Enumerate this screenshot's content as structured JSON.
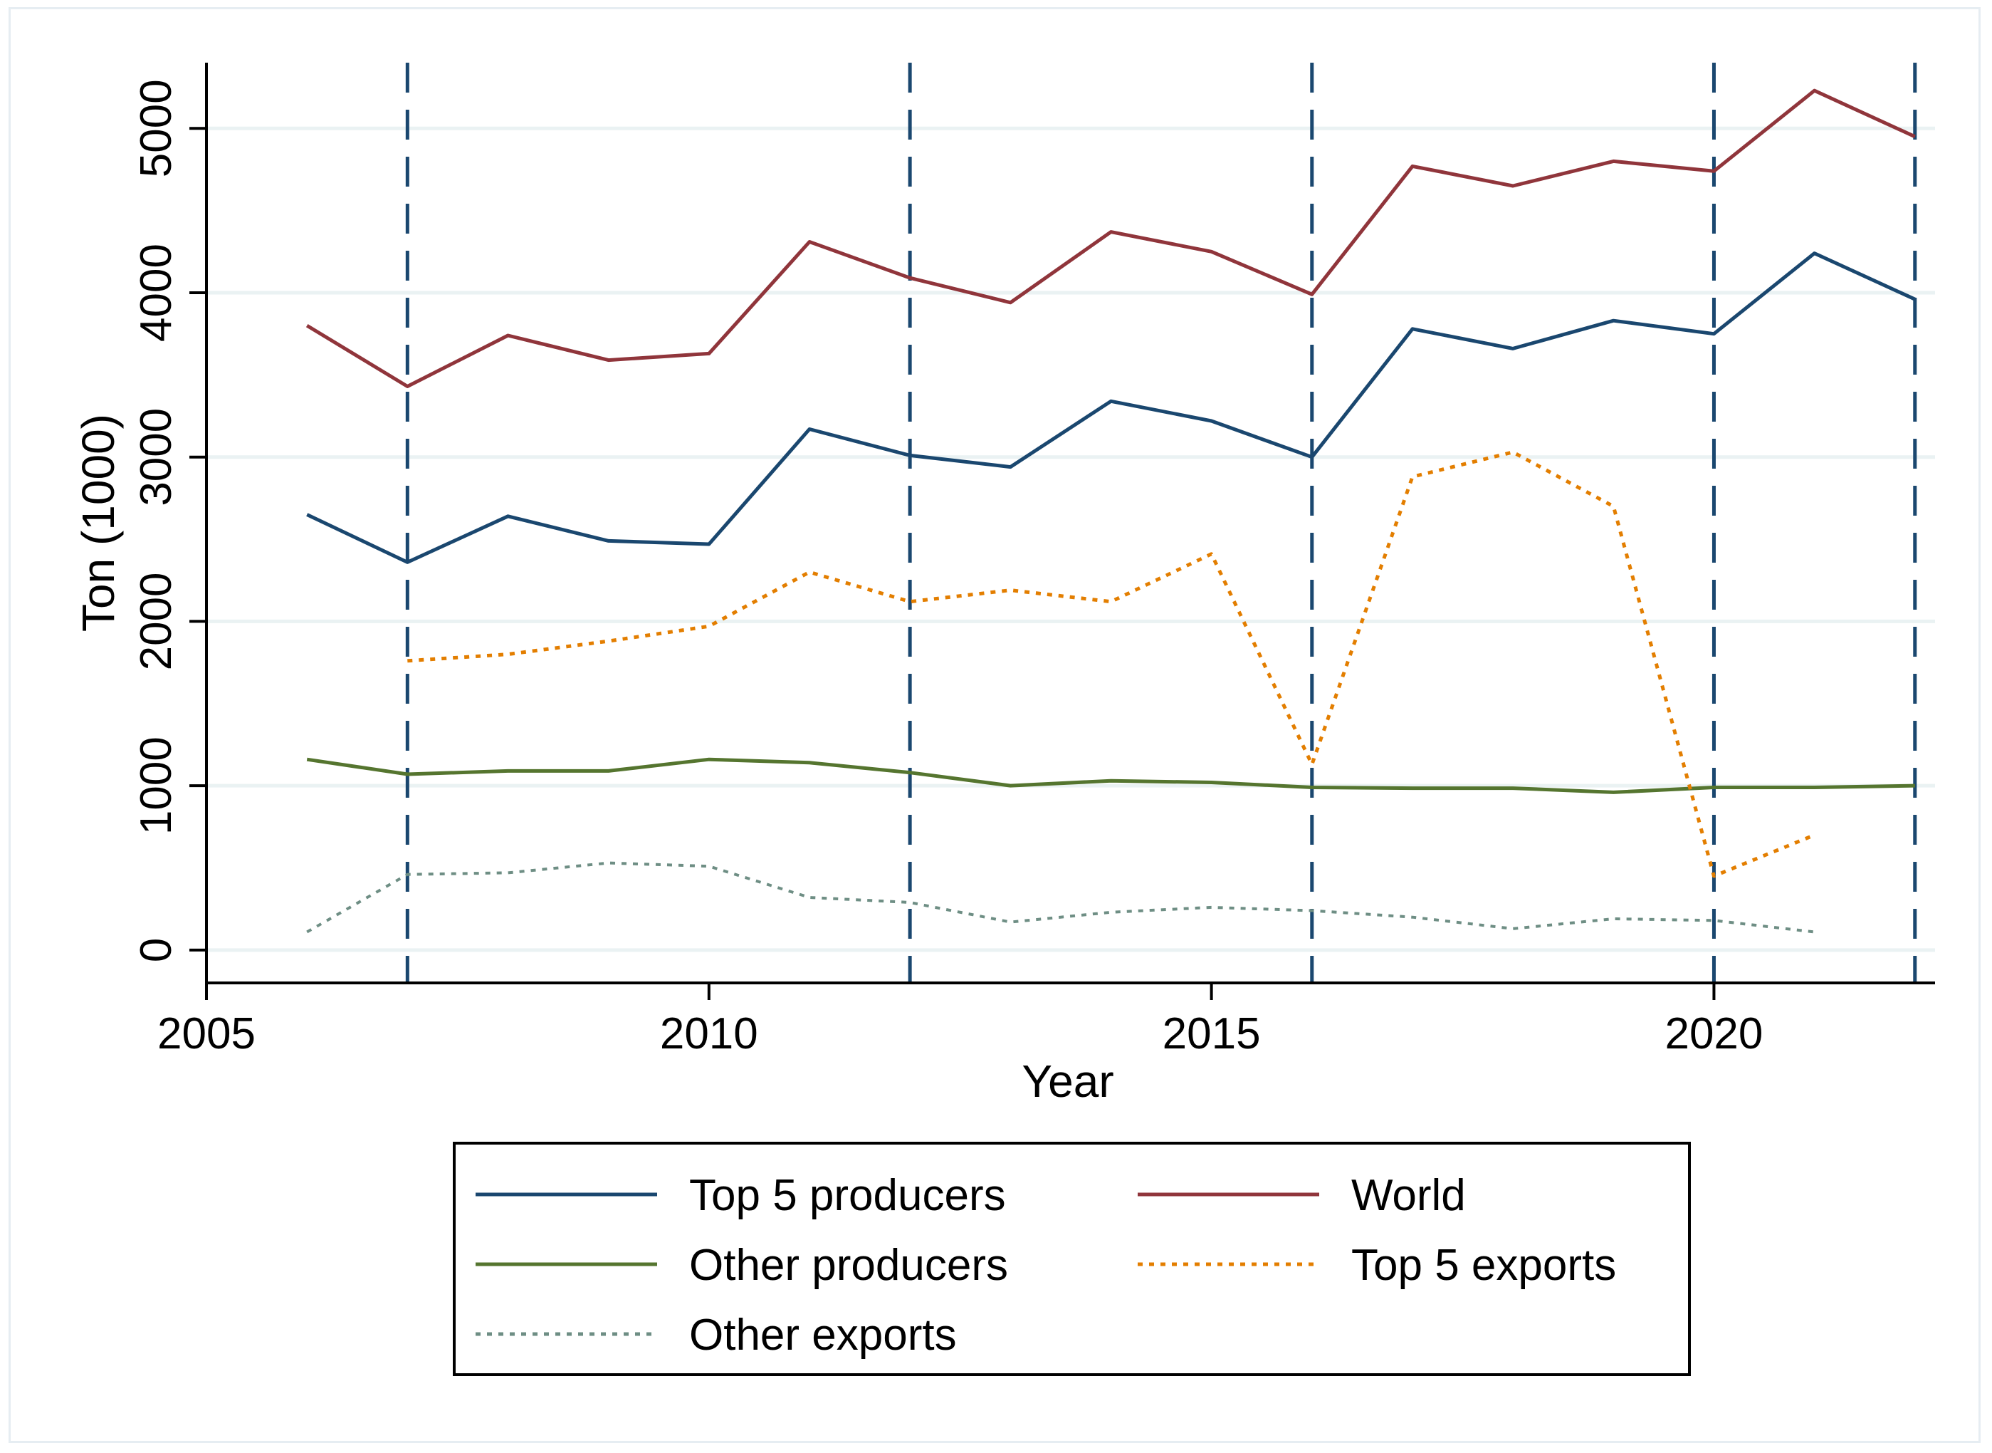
{
  "chart_data": {
    "type": "line",
    "title": "",
    "xlabel": "Year",
    "ylabel": "Ton (1000)",
    "xlim": [
      2005,
      2022.2
    ],
    "ylim": [
      -200,
      5400
    ],
    "x_ticks": [
      2005,
      2010,
      2015,
      2020
    ],
    "x_tick_labels": [
      "2005",
      "2010",
      "2015",
      "2020"
    ],
    "y_ticks": [
      0,
      1000,
      2000,
      3000,
      4000,
      5000
    ],
    "y_tick_labels": [
      "0",
      "1000",
      "2000",
      "3000",
      "4000",
      "5000"
    ],
    "grid": "horizontal",
    "vertical_reference_lines": [
      2007,
      2012,
      2016,
      2020,
      2022
    ],
    "colors": {
      "top5_producers": "#1a476f",
      "world": "#90353b",
      "other_producers": "#55752f",
      "top5_exports": "#e37e00",
      "other_exports": "#6e8e84",
      "reference_lines": "#1a476f",
      "grid": "#eaf2f3"
    },
    "series": [
      {
        "key": "top5_producers",
        "name": "Top 5 producers",
        "style": "solid",
        "x": [
          2006,
          2007,
          2008,
          2009,
          2010,
          2011,
          2012,
          2013,
          2014,
          2015,
          2016,
          2017,
          2018,
          2019,
          2020,
          2021,
          2022
        ],
        "values": [
          2650,
          2360,
          2640,
          2490,
          2470,
          3170,
          3010,
          2940,
          3340,
          3220,
          3000,
          3780,
          3660,
          3830,
          3750,
          4240,
          3960
        ]
      },
      {
        "key": "world",
        "name": "World",
        "style": "solid",
        "x": [
          2006,
          2007,
          2008,
          2009,
          2010,
          2011,
          2012,
          2013,
          2014,
          2015,
          2016,
          2017,
          2018,
          2019,
          2020,
          2021,
          2022
        ],
        "values": [
          3800,
          3430,
          3740,
          3590,
          3630,
          4310,
          4090,
          3940,
          4370,
          4250,
          3990,
          4770,
          4650,
          4800,
          4740,
          5230,
          4950
        ]
      },
      {
        "key": "other_producers",
        "name": "Other producers",
        "style": "solid",
        "x": [
          2006,
          2007,
          2008,
          2009,
          2010,
          2011,
          2012,
          2013,
          2014,
          2015,
          2016,
          2017,
          2018,
          2019,
          2020,
          2021,
          2022
        ],
        "values": [
          1160,
          1070,
          1090,
          1090,
          1160,
          1140,
          1080,
          1000,
          1030,
          1020,
          990,
          985,
          985,
          960,
          990,
          990,
          1000
        ]
      },
      {
        "key": "top5_exports",
        "name": "Top 5 exports",
        "style": "dotted",
        "x": [
          2007,
          2008,
          2009,
          2010,
          2011,
          2012,
          2013,
          2014,
          2015,
          2016,
          2017,
          2018,
          2019,
          2020,
          2021
        ],
        "values": [
          1760,
          1800,
          1880,
          1970,
          2300,
          2120,
          2190,
          2120,
          2410,
          1130,
          2880,
          3030,
          2700,
          450,
          700
        ]
      },
      {
        "key": "other_exports",
        "name": "Other exports",
        "style": "dotted",
        "x": [
          2006,
          2007,
          2008,
          2009,
          2010,
          2011,
          2012,
          2013,
          2014,
          2015,
          2016,
          2017,
          2018,
          2019,
          2020,
          2021
        ],
        "values": [
          110,
          460,
          470,
          530,
          510,
          320,
          290,
          170,
          230,
          260,
          240,
          200,
          130,
          190,
          180,
          110
        ]
      }
    ],
    "legend": {
      "placement": "bottom",
      "columns": 2,
      "items": [
        {
          "key": "top5_producers",
          "label": "Top 5 producers"
        },
        {
          "key": "world",
          "label": "World"
        },
        {
          "key": "other_producers",
          "label": "Other producers"
        },
        {
          "key": "top5_exports",
          "label": "Top 5 exports"
        },
        {
          "key": "other_exports",
          "label": "Other exports"
        }
      ]
    }
  }
}
